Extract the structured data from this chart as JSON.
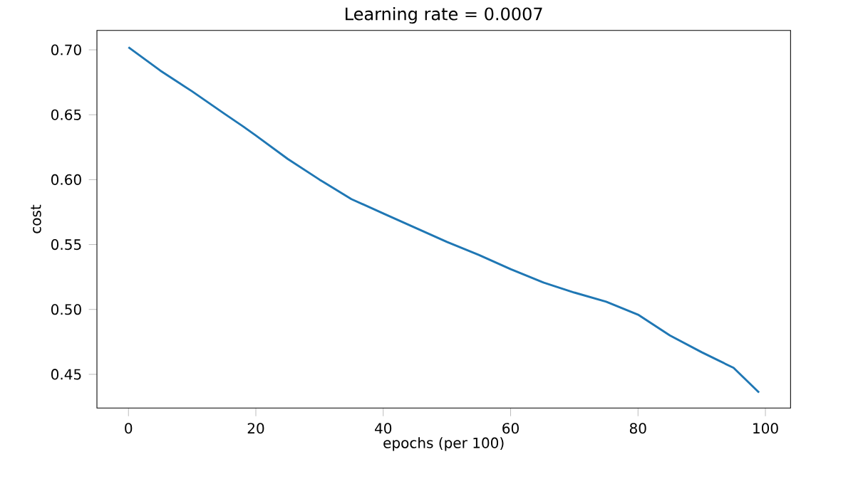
{
  "chart_data": {
    "type": "line",
    "title": "Learning rate = 0.0007",
    "xlabel": "epochs (per 100)",
    "ylabel": "cost",
    "x": [
      0,
      5,
      10,
      15,
      18,
      20,
      25,
      30,
      35,
      40,
      45,
      50,
      55,
      60,
      65,
      70,
      75,
      80,
      85,
      90,
      95,
      99
    ],
    "series": [
      {
        "color": "#1f77b4",
        "values": [
          0.702,
          0.684,
          0.668,
          0.651,
          0.641,
          0.634,
          0.616,
          0.6,
          0.585,
          0.574,
          0.563,
          0.552,
          0.542,
          0.531,
          0.521,
          0.513,
          0.506,
          0.496,
          0.48,
          0.467,
          0.455,
          0.436
        ]
      }
    ],
    "xlim": [
      -4.95,
      103.95
    ],
    "ylim": [
      0.424,
      0.715
    ],
    "xticks": [
      0,
      20,
      40,
      60,
      80,
      100
    ],
    "yticks": [
      0.45,
      {
        "value": 0.5,
        "label": "0.50"
      },
      0.55,
      {
        "value": 0.6,
        "label": "0.60"
      },
      0.65,
      {
        "value": 0.7,
        "label": "0.70"
      }
    ],
    "grid": false
  }
}
